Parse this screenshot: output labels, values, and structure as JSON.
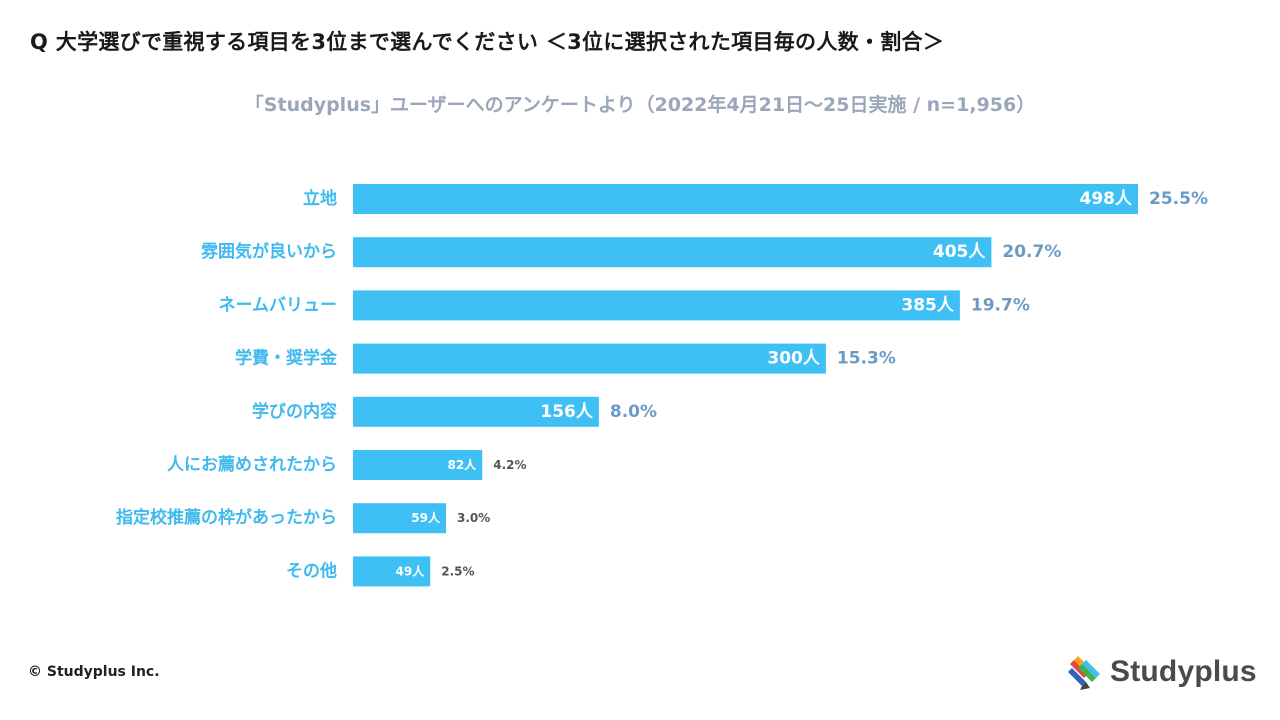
{
  "title": "Q 大学選びで重視する項目を3位まで選んでください ＜3位に選択された項目毎の人数・割合＞",
  "subtitle": "「Studyplus」ユーザーへのアンケートより（2022年4月21日〜25日実施 / n=1,956）",
  "copyright": "© Studyplus Inc.",
  "logo": {
    "text": "Studyplus",
    "icon": "studyplus-pencil-logo-icon"
  },
  "colors": {
    "bar": "#3ec0f5",
    "category_label": "#3fb9ee",
    "pct_large": "#6b9bc4",
    "pct_small": "#555555"
  },
  "chart_data": {
    "type": "bar",
    "orientation": "horizontal",
    "title": "Q 大学選びで重視する項目を3位まで選んでください ＜3位に選択された項目毎の人数・割合＞",
    "subtitle": "「Studyplus」ユーザーへのアンケートより（2022年4月21日〜25日実施 / n=1,956）",
    "categories": [
      "立地",
      "雰囲気が良いから",
      "ネームバリュー",
      "学費・奨学金",
      "学びの内容",
      "人にお薦めされたから",
      "指定校推薦の枠があったから",
      "その他"
    ],
    "values": [
      498,
      405,
      385,
      300,
      156,
      82,
      59,
      49
    ],
    "value_labels": [
      "498人",
      "405人",
      "385人",
      "300人",
      "156人",
      "82人",
      "59人",
      "49人"
    ],
    "percent_labels": [
      "25.5%",
      "20.7%",
      "19.7%",
      "15.3%",
      "8.0%",
      "4.2%",
      "3.0%",
      "2.5%"
    ],
    "unit": "人",
    "xlim": [
      0,
      498
    ],
    "grid": false,
    "legend": "none"
  }
}
